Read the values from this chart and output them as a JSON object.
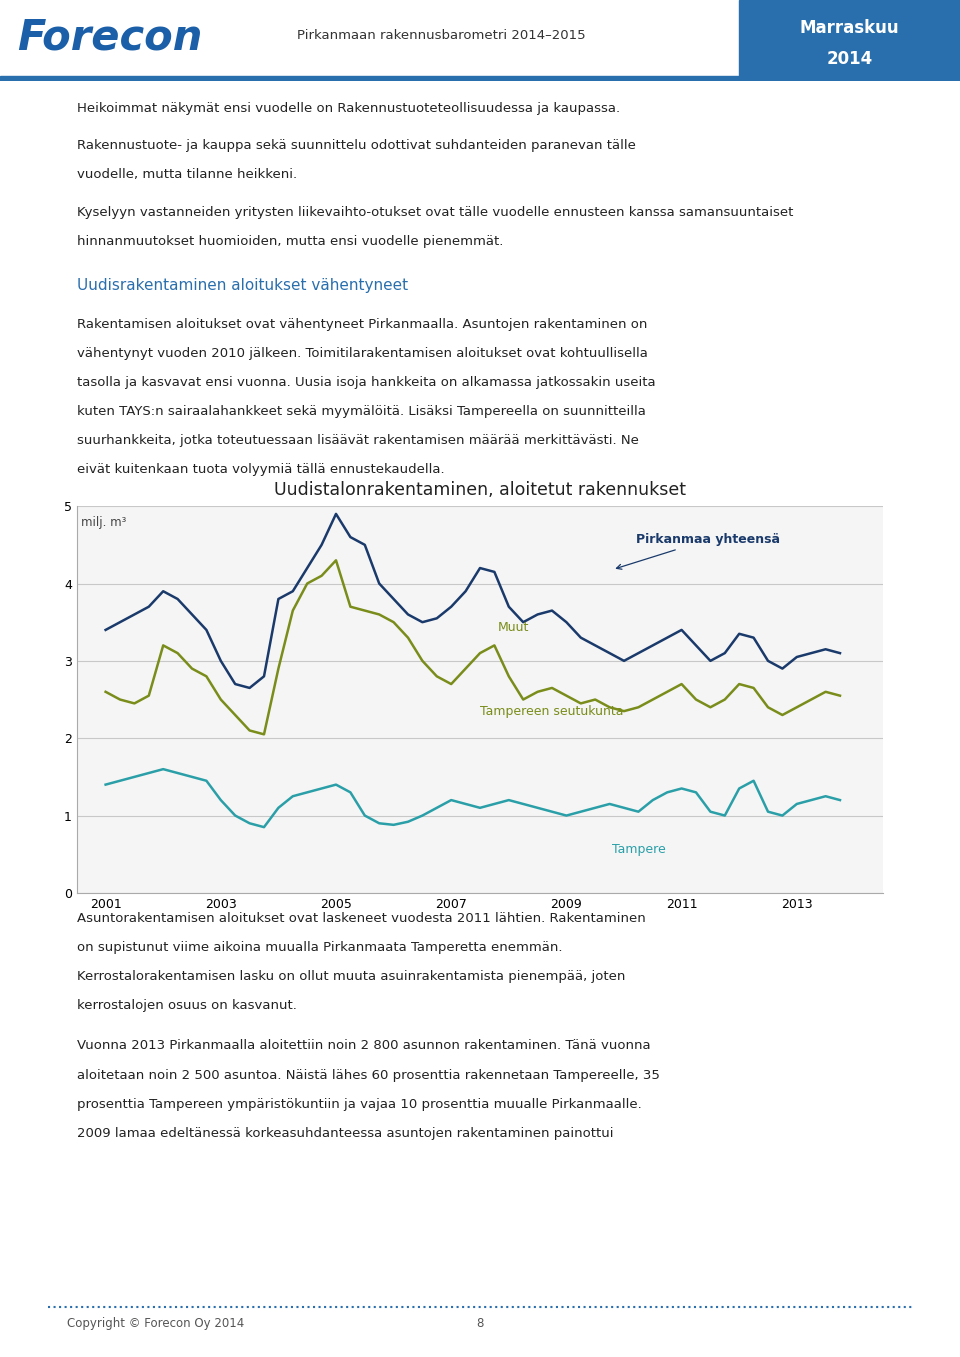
{
  "header_title": "Forecon",
  "header_center": "Pirkanmaan rakennusbarometri 2014–2015",
  "header_right_line1": "Marraskuu",
  "header_right_line2": "2014",
  "pirkanmaa_color": "#1a3a6b",
  "seutukunta_color": "#7a8c1a",
  "tampere_color": "#2a9fa8",
  "chart_title": "Uudistalonrakentaminen, aloitetut rakennukset",
  "chart_ylabel": "milj. m³",
  "chart_ylim": [
    0,
    5
  ],
  "chart_yticks": [
    0,
    1,
    2,
    3,
    4,
    5
  ],
  "chart_xticks": [
    2001,
    2003,
    2005,
    2007,
    2009,
    2011,
    2013
  ],
  "pirkanmaa_label": "Pirkanmaa yhteensä",
  "muut_label": "Muut",
  "tampereen_seutukunta_label": "Tampereen seutukunta",
  "tampere_label": "Tampere",
  "footer_text": "Copyright © Forecon Oy 2014",
  "footer_page": "8"
}
